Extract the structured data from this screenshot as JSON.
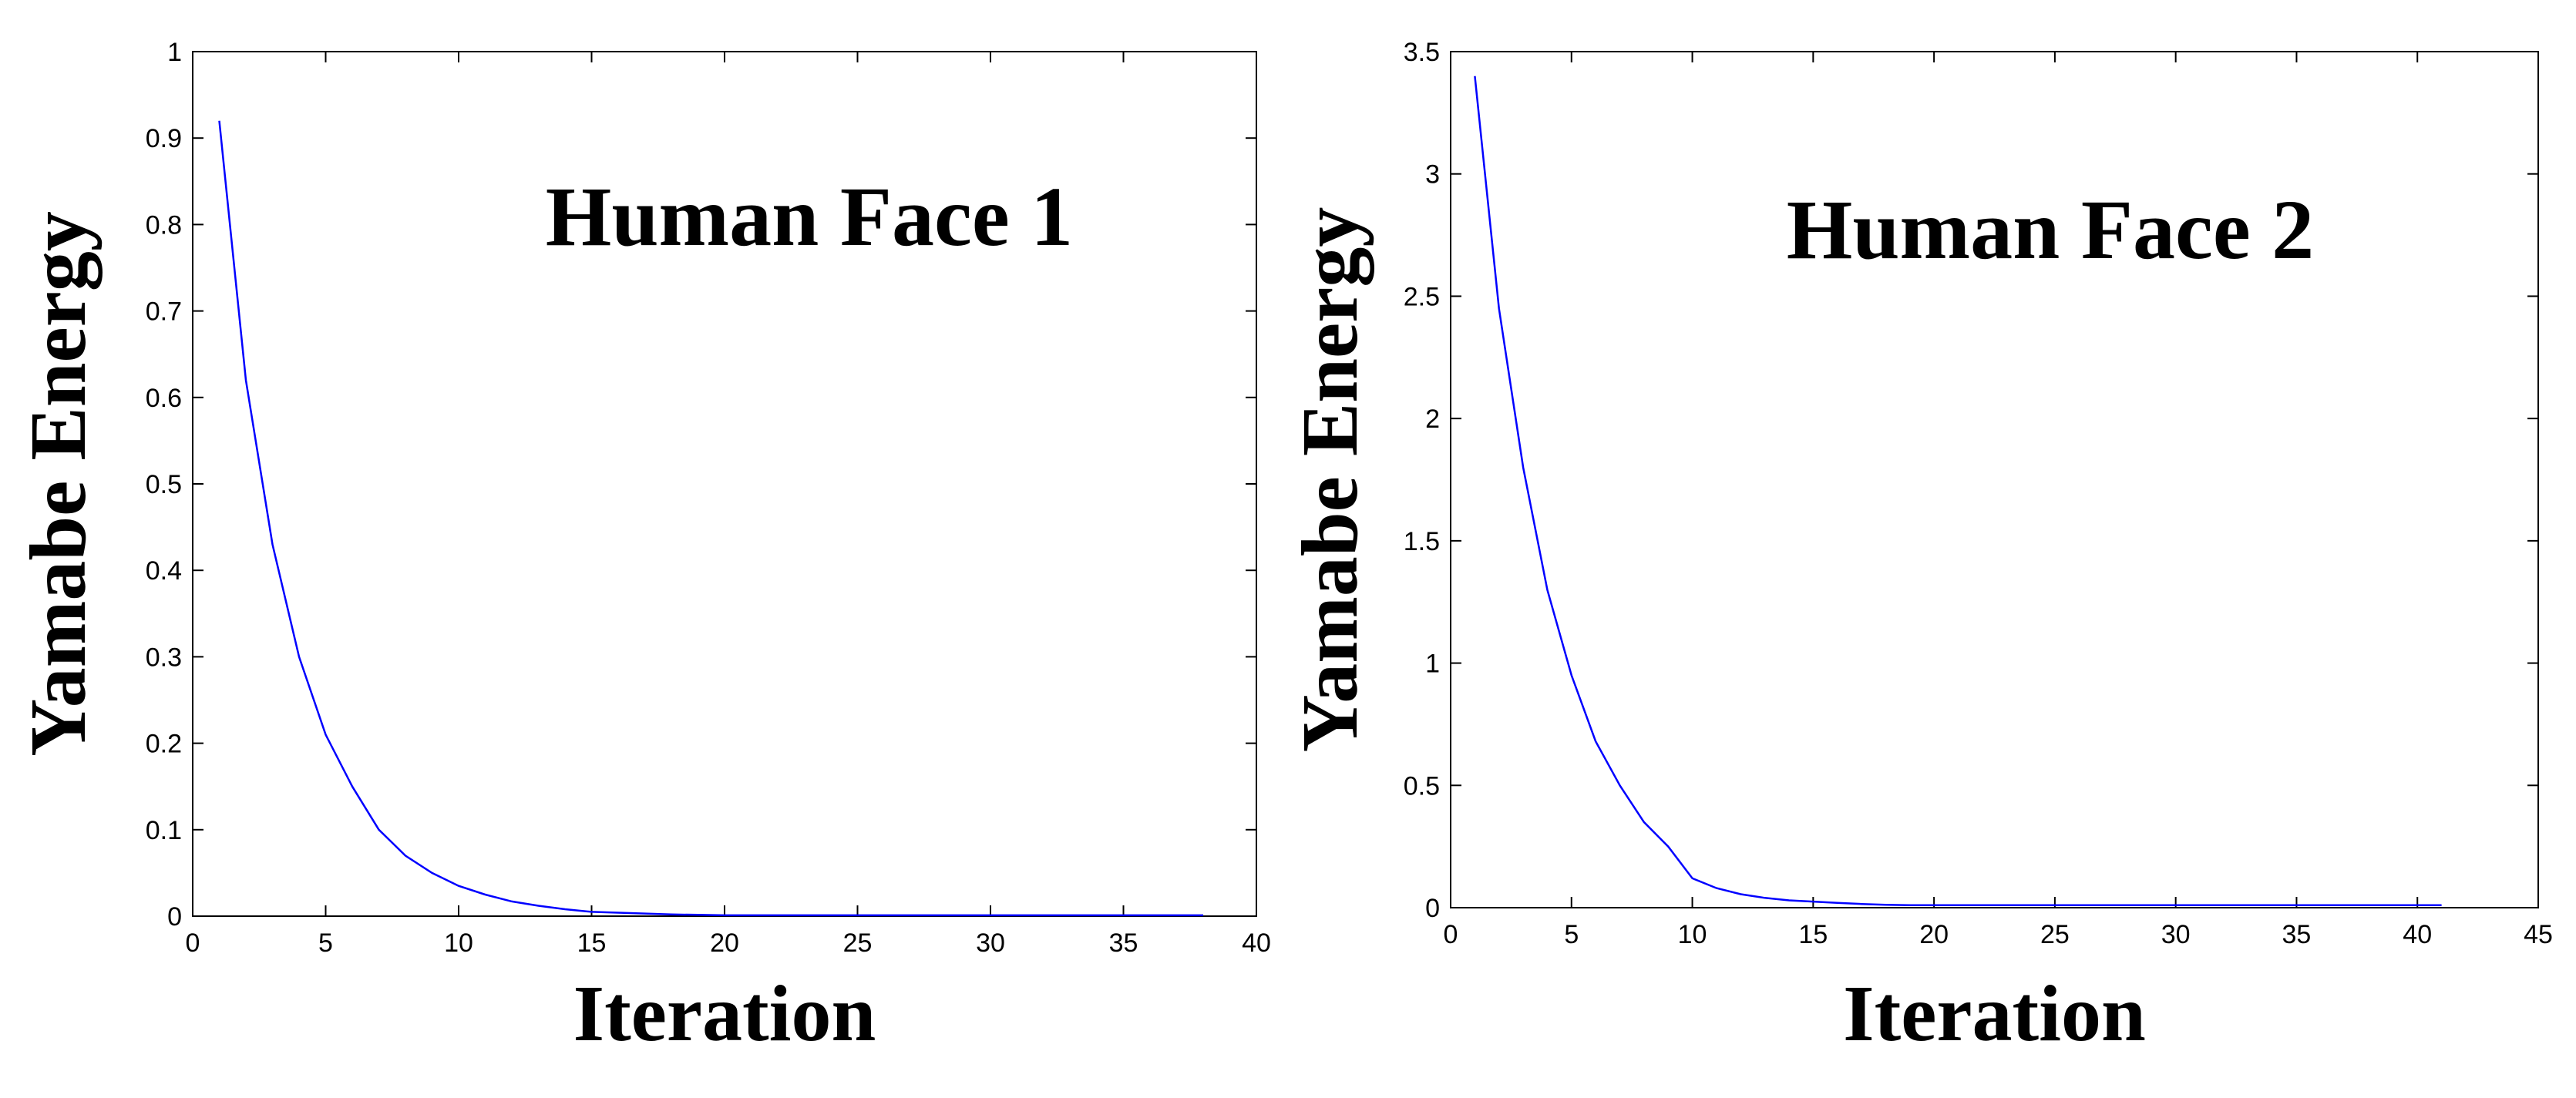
{
  "chart_data": [
    {
      "type": "line",
      "annotation": "Human Face 1",
      "xlabel": "Iteration",
      "ylabel": "Yamabe Energy",
      "xlim": [
        0,
        40
      ],
      "ylim": [
        0,
        1
      ],
      "xticks": [
        0,
        5,
        10,
        15,
        20,
        25,
        30,
        35,
        40
      ],
      "yticks": [
        0,
        0.1,
        0.2,
        0.3,
        0.4,
        0.5,
        0.6,
        0.7,
        0.8,
        0.9,
        1
      ],
      "grid": false,
      "line_color": "#0000ff",
      "series": [
        {
          "x": [
            1,
            2,
            3,
            4,
            5,
            6,
            7,
            8,
            9,
            10,
            11,
            12,
            13,
            14,
            15,
            16,
            17,
            18,
            19,
            20,
            21,
            22,
            23,
            24,
            25,
            26,
            27,
            28,
            29,
            30,
            31,
            32,
            33,
            34,
            35,
            36,
            37,
            38
          ],
          "y": [
            0.92,
            0.62,
            0.43,
            0.3,
            0.21,
            0.15,
            0.1,
            0.07,
            0.05,
            0.035,
            0.025,
            0.017,
            0.012,
            0.008,
            0.005,
            0.004,
            0.003,
            0.002,
            0.0015,
            0.001,
            0.001,
            0.001,
            0.001,
            0.001,
            0.001,
            0.001,
            0.001,
            0.001,
            0.001,
            0.001,
            0.001,
            0.001,
            0.001,
            0.001,
            0.001,
            0.001,
            0.001,
            0.001
          ]
        }
      ]
    },
    {
      "type": "line",
      "annotation": "Human Face 2",
      "xlabel": "Iteration",
      "ylabel": "Yamabe Energy",
      "xlim": [
        0,
        45
      ],
      "ylim": [
        0,
        3.5
      ],
      "xticks": [
        0,
        5,
        10,
        15,
        20,
        25,
        30,
        35,
        40,
        45
      ],
      "yticks": [
        0,
        0.5,
        1,
        1.5,
        2,
        2.5,
        3,
        3.5
      ],
      "grid": false,
      "line_color": "#0000ff",
      "series": [
        {
          "x": [
            1,
            2,
            3,
            4,
            5,
            6,
            7,
            8,
            9,
            10,
            11,
            12,
            13,
            14,
            15,
            16,
            17,
            18,
            19,
            20,
            21,
            22,
            23,
            24,
            25,
            26,
            27,
            28,
            29,
            30,
            31,
            32,
            33,
            34,
            35,
            36,
            37,
            38,
            39,
            40,
            41
          ],
          "y": [
            3.4,
            2.45,
            1.8,
            1.3,
            0.95,
            0.68,
            0.5,
            0.35,
            0.25,
            0.12,
            0.08,
            0.055,
            0.04,
            0.03,
            0.025,
            0.02,
            0.015,
            0.012,
            0.01,
            0.01,
            0.01,
            0.01,
            0.01,
            0.01,
            0.01,
            0.01,
            0.01,
            0.01,
            0.01,
            0.01,
            0.01,
            0.01,
            0.01,
            0.01,
            0.01,
            0.01,
            0.01,
            0.01,
            0.01,
            0.01,
            0.01
          ]
        }
      ]
    }
  ]
}
